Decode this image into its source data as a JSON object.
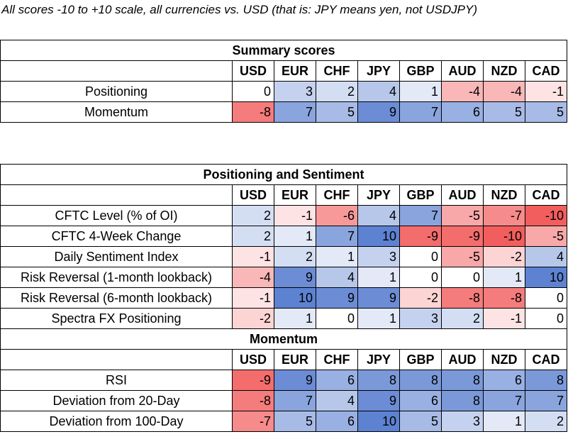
{
  "caption": "All scores -10 to +10 scale, all currencies vs. USD (that is: JPY means yen, not USDJPY)",
  "currencies": [
    "USD",
    "EUR",
    "CHF",
    "JPY",
    "GBP",
    "AUD",
    "NZD",
    "CAD"
  ],
  "colors": {
    "positive": "#5a7fd0",
    "negative": "#f25b5b",
    "neutral": "#ffffff"
  },
  "summary": {
    "title": "Summary scores",
    "rows": [
      {
        "label": "Positioning",
        "values": [
          0,
          3,
          2,
          4,
          1,
          -4,
          -4,
          -1
        ]
      },
      {
        "label": "Momentum",
        "values": [
          -8,
          7,
          5,
          9,
          7,
          6,
          5,
          5
        ]
      }
    ]
  },
  "positioning": {
    "title": "Positioning and Sentiment",
    "rows": [
      {
        "label": "CFTC Level (% of OI)",
        "values": [
          2,
          -1,
          -6,
          4,
          7,
          -5,
          -7,
          -10
        ]
      },
      {
        "label": "CFTC 4-Week Change",
        "values": [
          2,
          1,
          7,
          10,
          -9,
          -9,
          -10,
          -5
        ]
      },
      {
        "label": "Daily Sentiment Index",
        "values": [
          -1,
          2,
          1,
          3,
          0,
          -5,
          -2,
          4
        ]
      },
      {
        "label": "Risk Reversal (1-month lookback)",
        "values": [
          -4,
          9,
          4,
          1,
          0,
          0,
          1,
          10
        ]
      },
      {
        "label": "Risk Reversal (6-month lookback)",
        "values": [
          -1,
          10,
          9,
          9,
          -2,
          -8,
          -8,
          0
        ]
      },
      {
        "label": "Spectra FX Positioning",
        "values": [
          -2,
          1,
          0,
          1,
          3,
          2,
          -1,
          0
        ]
      }
    ]
  },
  "momentum": {
    "title": "Momentum",
    "rows": [
      {
        "label": "RSI",
        "values": [
          -9,
          9,
          6,
          8,
          8,
          8,
          6,
          8
        ]
      },
      {
        "label": "Deviation from 20-Day",
        "values": [
          -8,
          7,
          4,
          9,
          6,
          8,
          7,
          7
        ]
      },
      {
        "label": "Deviation from 100-Day",
        "values": [
          -7,
          5,
          6,
          10,
          5,
          3,
          1,
          2
        ]
      }
    ]
  }
}
